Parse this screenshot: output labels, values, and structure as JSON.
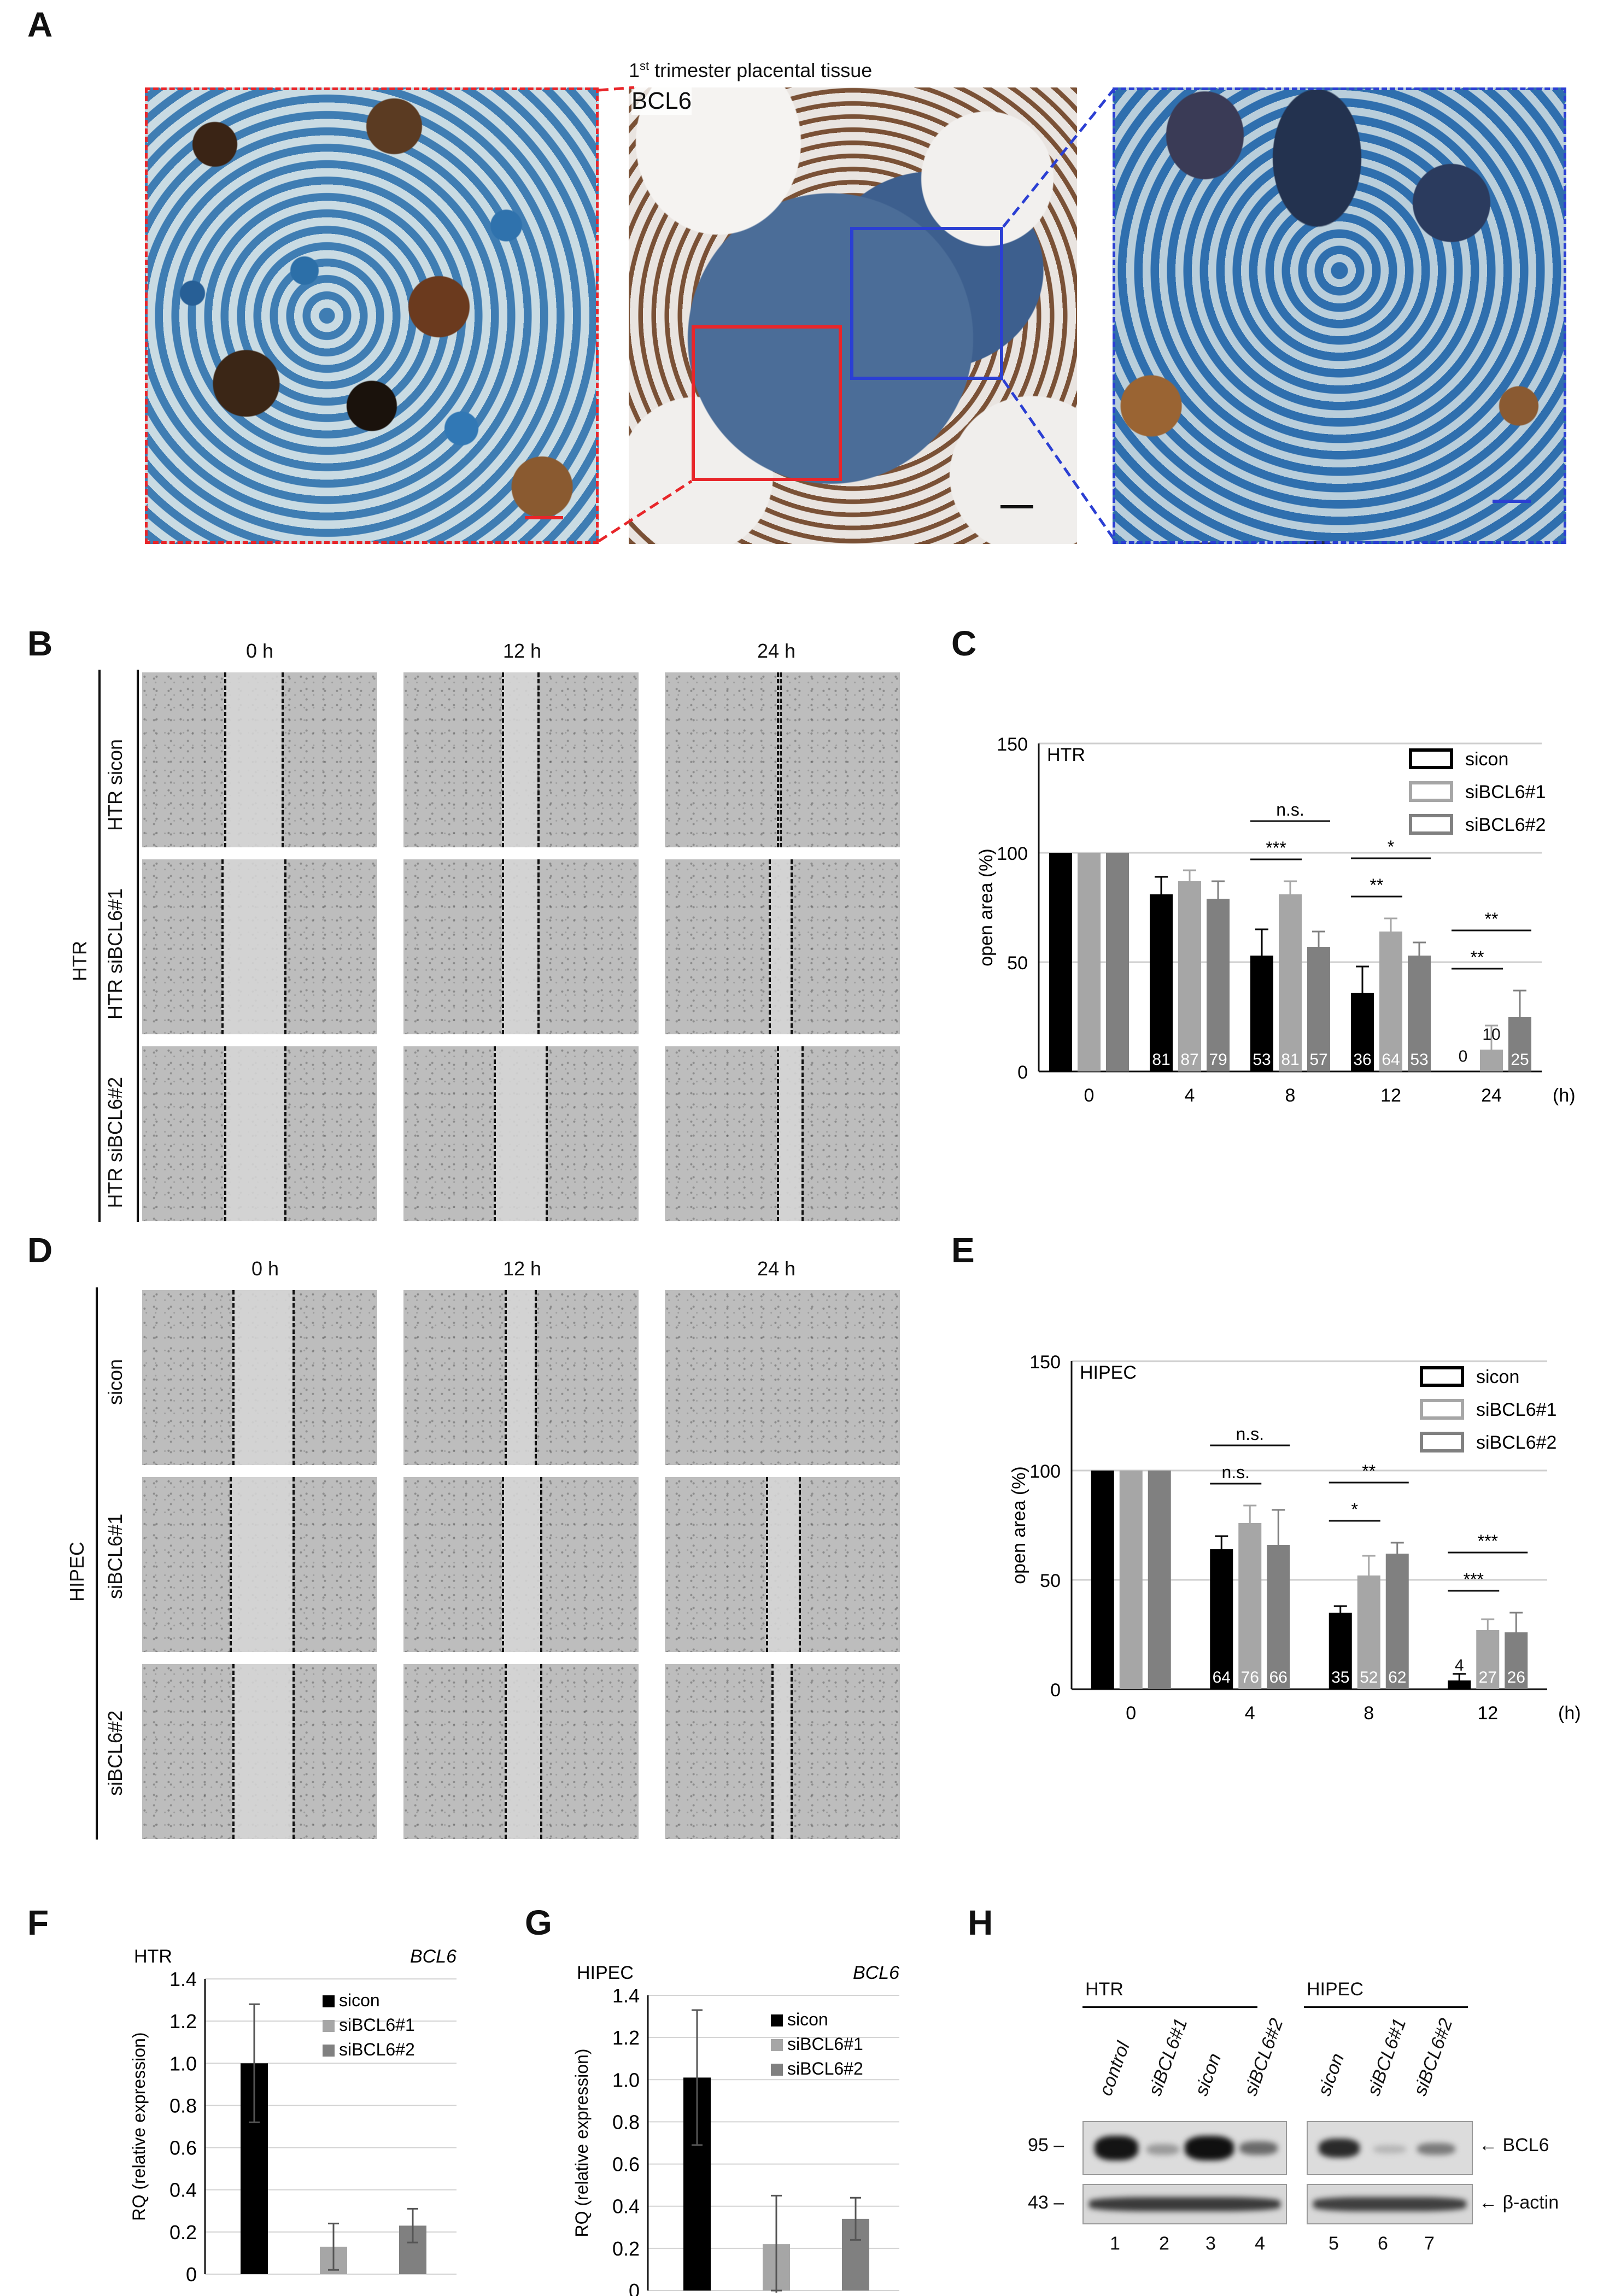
{
  "panels": [
    "A",
    "B",
    "C",
    "D",
    "E",
    "F",
    "G",
    "H"
  ],
  "panelA": {
    "title_main": "1",
    "title_sup": "st",
    "title_rest": " trimester placental tissue",
    "stain_label": "BCL6",
    "left_frame_color": "#e8262a",
    "right_frame_color": "#2b3fd3"
  },
  "panelB": {
    "columns": [
      "0 h",
      "12 h",
      "24 h"
    ],
    "group_label": "HTR",
    "rows": [
      "HTR sicon",
      "HTR siBCL6#1",
      "HTR siBCL6#2"
    ]
  },
  "panelD": {
    "columns": [
      "0 h",
      "12 h",
      "24 h"
    ],
    "group_label": "HIPEC",
    "rows": [
      "sicon",
      "siBCL6#1",
      "siBCL6#2"
    ]
  },
  "chart_data": [
    {
      "id": "C",
      "type": "bar",
      "inner_label": "HTR",
      "ylabel": "open area  (%)",
      "x_unit": "(h)",
      "categories": [
        "0",
        "4",
        "8",
        "12",
        "24"
      ],
      "ylim": [
        0,
        150
      ],
      "yticks": [
        "0",
        "50",
        "100",
        "150"
      ],
      "series": [
        {
          "name": "sicon",
          "color": "#000000",
          "values": [
            100,
            81,
            53,
            36,
            0
          ],
          "errors": [
            0,
            8,
            12,
            12,
            0
          ]
        },
        {
          "name": "siBCL6#1",
          "color": "#a6a6a6",
          "values": [
            100,
            87,
            81,
            64,
            10
          ],
          "errors": [
            0,
            5,
            6,
            6,
            11
          ]
        },
        {
          "name": "siBCL6#2",
          "color": "#808080",
          "values": [
            100,
            79,
            57,
            53,
            25
          ],
          "errors": [
            0,
            8,
            7,
            6,
            12
          ]
        }
      ],
      "value_labels": [
        [
          null,
          "81",
          "53",
          "36",
          "0"
        ],
        [
          null,
          "87",
          "81",
          "64",
          "10"
        ],
        [
          null,
          "79",
          "57",
          "53",
          "25"
        ]
      ],
      "significance": [
        {
          "cat": 2,
          "from": 0,
          "to": 2,
          "label": "n.s.",
          "level": 2
        },
        {
          "cat": 2,
          "from": 0,
          "to": 1,
          "label": "***",
          "level": 1
        },
        {
          "cat": 3,
          "from": 0,
          "to": 2,
          "label": "*",
          "level": 2
        },
        {
          "cat": 3,
          "from": 0,
          "to": 1,
          "label": "**",
          "level": 1
        },
        {
          "cat": 4,
          "from": 0,
          "to": 2,
          "label": "**",
          "level": 2
        },
        {
          "cat": 4,
          "from": 0,
          "to": 1,
          "label": "**",
          "level": 1
        }
      ]
    },
    {
      "id": "E",
      "type": "bar",
      "inner_label": "HIPEC",
      "ylabel": "open area  (%)",
      "x_unit": "(h)",
      "categories": [
        "0",
        "4",
        "8",
        "12"
      ],
      "ylim": [
        0,
        150
      ],
      "yticks": [
        "0",
        "50",
        "100",
        "150"
      ],
      "series": [
        {
          "name": "sicon",
          "color": "#000000",
          "values": [
            100,
            64,
            35,
            4
          ],
          "errors": [
            0,
            6,
            3,
            3
          ]
        },
        {
          "name": "siBCL6#1",
          "color": "#a6a6a6",
          "values": [
            100,
            76,
            52,
            27
          ],
          "errors": [
            0,
            8,
            9,
            5
          ]
        },
        {
          "name": "siBCL6#2",
          "color": "#808080",
          "values": [
            100,
            66,
            62,
            26
          ],
          "errors": [
            0,
            16,
            5,
            9
          ]
        }
      ],
      "value_labels": [
        [
          null,
          "64",
          "35",
          "4"
        ],
        [
          null,
          "76",
          "52",
          "27"
        ],
        [
          null,
          "66",
          "62",
          "26"
        ]
      ],
      "significance": [
        {
          "cat": 1,
          "from": 0,
          "to": 2,
          "label": "n.s.",
          "level": 2
        },
        {
          "cat": 1,
          "from": 0,
          "to": 1,
          "label": "n.s.",
          "level": 1
        },
        {
          "cat": 2,
          "from": 0,
          "to": 2,
          "label": "**",
          "level": 2
        },
        {
          "cat": 2,
          "from": 0,
          "to": 1,
          "label": "*",
          "level": 1
        },
        {
          "cat": 3,
          "from": 0,
          "to": 2,
          "label": "***",
          "level": 2
        },
        {
          "cat": 3,
          "from": 0,
          "to": 1,
          "label": "***",
          "level": 1
        }
      ]
    },
    {
      "id": "F",
      "type": "bar",
      "inner_label": "HTR",
      "gene_label": "BCL6",
      "ylabel": "RQ (relative expression)",
      "categories": [
        "sicon",
        "siBCL6#1",
        "siBCL6#2"
      ],
      "ylim": [
        0,
        1.4
      ],
      "yticks": [
        "0",
        "0.2",
        "0.4",
        "0.6",
        "0.8",
        "1.0",
        "1.2",
        "1.4"
      ],
      "colors": [
        "#000000",
        "#a6a6a6",
        "#808080"
      ],
      "values": [
        1.0,
        0.13,
        0.23
      ],
      "errors": [
        0.28,
        0.11,
        0.08
      ]
    },
    {
      "id": "G",
      "type": "bar",
      "inner_label": "HIPEC",
      "gene_label": "BCL6",
      "ylabel": "RQ (relative expression)",
      "categories": [
        "sicon",
        "siBCL6#1",
        "siBCL6#2"
      ],
      "ylim": [
        0,
        1.4
      ],
      "yticks": [
        "0",
        "0.2",
        "0.4",
        "0.6",
        "0.8",
        "1.0",
        "1.2",
        "1.4"
      ],
      "colors": [
        "#000000",
        "#a6a6a6",
        "#808080"
      ],
      "values": [
        1.01,
        0.22,
        0.34
      ],
      "errors": [
        0.32,
        0.23,
        0.1
      ]
    }
  ],
  "panelH": {
    "groups": [
      "HTR",
      "HIPEC"
    ],
    "lanes_htr": [
      "control",
      "siBCL6#1",
      "sicon",
      "siBCL6#2"
    ],
    "lanes_hipec": [
      "sicon",
      "siBCL6#1",
      "siBCL6#2"
    ],
    "mw_top": "95 –",
    "mw_bottom": "43 –",
    "band_top": "← BCL6",
    "band_bottom": "← β-actin",
    "lane_numbers": [
      "1",
      "2",
      "3",
      "4",
      "5",
      "6",
      "7"
    ]
  }
}
